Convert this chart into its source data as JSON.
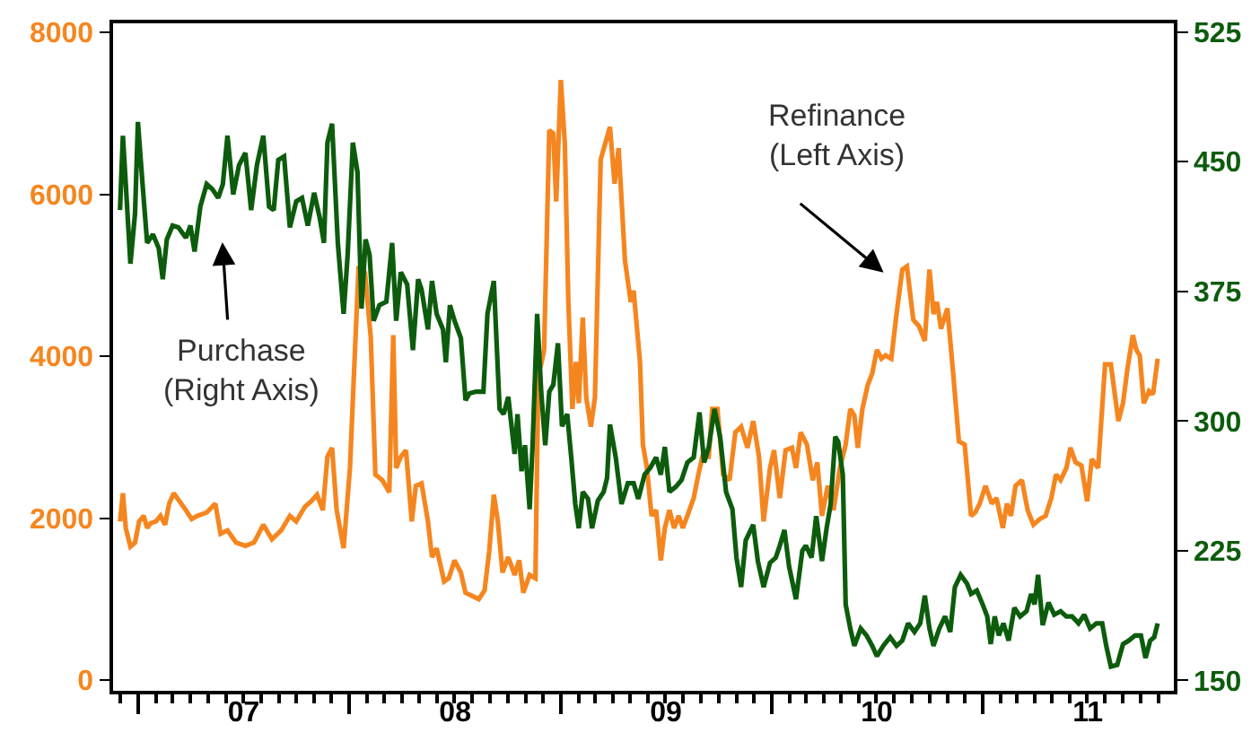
{
  "chart_data": {
    "type": "line",
    "xlim": [
      "2006-11-18",
      "2011-11-28"
    ],
    "xticks": [
      {
        "value": "2007-01-01",
        "label": null
      },
      {
        "value": "2008-01-01",
        "label": null
      },
      {
        "value": "2009-01-01",
        "label": null
      },
      {
        "value": "2010-01-01",
        "label": null
      },
      {
        "value": "2011-01-01",
        "label": null
      },
      {
        "value": "2007-07-02",
        "label": "07"
      },
      {
        "value": "2008-07-02",
        "label": "08"
      },
      {
        "value": "2009-07-02",
        "label": "09"
      },
      {
        "value": "2010-07-02",
        "label": "10"
      },
      {
        "value": "2011-07-02",
        "label": "11"
      }
    ],
    "ylim": [
      -130,
      8110
    ],
    "yticks": [
      0,
      2000,
      4000,
      6000,
      8000
    ],
    "y2lim": [
      144,
      530
    ],
    "y2ticks": [
      150,
      225,
      300,
      375,
      450,
      525
    ],
    "line_style": "solid",
    "annotations": [
      "Purchase\n(Right Axis)",
      "Refinance\n(Left Axis)"
    ],
    "series": [
      {
        "color": "#f5861f",
        "x": [
          "2006-11-30",
          "2006-12-05",
          "2006-12-10",
          "2006-12-18",
          "2006-12-26",
          "2007-01-02",
          "2007-01-10",
          "2007-01-16",
          "2007-01-22",
          "2007-01-31",
          "2007-02-08",
          "2007-02-16",
          "2007-02-23",
          "2007-03-03",
          "2007-03-13",
          "2007-03-24",
          "2007-04-03",
          "2007-04-13",
          "2007-04-29",
          "2007-05-14",
          "2007-05-23",
          "2007-06-04",
          "2007-06-19",
          "2007-07-05",
          "2007-07-20",
          "2007-08-05",
          "2007-08-20",
          "2007-09-05",
          "2007-09-20",
          "2007-10-01",
          "2007-10-16",
          "2007-10-27",
          "2007-11-06",
          "2007-11-16",
          "2007-11-24",
          "2007-12-02",
          "2007-12-10",
          "2007-12-22",
          "2008-01-02",
          "2008-01-09",
          "2008-01-17",
          "2008-01-28",
          "2008-02-07",
          "2008-02-15",
          "2008-02-27",
          "2008-03-10",
          "2008-03-17",
          "2008-03-22",
          "2008-03-30",
          "2008-04-08",
          "2008-04-18",
          "2008-04-25",
          "2008-05-05",
          "2008-05-16",
          "2008-05-23",
          "2008-05-31",
          "2008-06-13",
          "2008-06-21",
          "2008-07-01",
          "2008-07-12",
          "2008-07-20",
          "2008-08-01",
          "2008-08-12",
          "2008-08-22",
          "2008-08-30",
          "2008-09-07",
          "2008-09-14",
          "2008-09-22",
          "2008-10-02",
          "2008-10-13",
          "2008-10-21",
          "2008-10-28",
          "2008-11-08",
          "2008-11-18",
          "2008-11-23",
          "2008-11-28",
          "2008-12-03",
          "2008-12-12",
          "2008-12-19",
          "2008-12-24",
          "2009-01-01",
          "2009-01-08",
          "2009-01-14",
          "2009-01-21",
          "2009-01-27",
          "2009-02-01",
          "2009-02-08",
          "2009-02-14",
          "2009-02-22",
          "2009-03-01",
          "2009-03-11",
          "2009-03-27",
          "2009-04-04",
          "2009-04-11",
          "2009-04-22",
          "2009-05-02",
          "2009-05-07",
          "2009-05-18",
          "2009-05-23",
          "2009-05-30",
          "2009-06-07",
          "2009-06-15",
          "2009-06-23",
          "2009-06-30",
          "2009-07-08",
          "2009-07-16",
          "2009-07-24",
          "2009-07-31",
          "2009-08-08",
          "2009-08-19",
          "2009-08-27",
          "2009-09-03",
          "2009-09-14",
          "2009-09-20",
          "2009-09-29",
          "2009-10-09",
          "2009-10-20",
          "2009-10-30",
          "2009-11-09",
          "2009-11-20",
          "2009-11-30",
          "2009-12-10",
          "2009-12-18",
          "2009-12-29",
          "2010-01-05",
          "2010-01-15",
          "2010-01-25",
          "2010-02-05",
          "2010-02-12",
          "2010-02-20",
          "2010-03-03",
          "2010-03-13",
          "2010-03-21",
          "2010-03-29",
          "2010-04-08",
          "2010-04-18",
          "2010-04-29",
          "2010-05-09",
          "2010-05-17",
          "2010-05-24",
          "2010-05-30",
          "2010-06-07",
          "2010-06-16",
          "2010-06-24",
          "2010-07-02",
          "2010-07-10",
          "2010-07-17",
          "2010-07-27",
          "2010-08-05",
          "2010-08-15",
          "2010-08-23",
          "2010-09-03",
          "2010-09-13",
          "2010-09-23",
          "2010-10-01",
          "2010-10-08",
          "2010-10-14",
          "2010-10-21",
          "2010-11-01",
          "2010-11-11",
          "2010-11-21",
          "2010-12-01",
          "2010-12-12",
          "2010-12-19",
          "2010-12-27",
          "2011-01-06",
          "2011-01-17",
          "2011-01-25",
          "2011-02-05",
          "2011-02-12",
          "2011-02-19",
          "2011-02-27",
          "2011-03-10",
          "2011-03-20",
          "2011-03-30",
          "2011-04-10",
          "2011-04-20",
          "2011-04-30",
          "2011-05-08",
          "2011-05-16",
          "2011-05-26",
          "2011-06-02",
          "2011-06-11",
          "2011-06-21",
          "2011-07-01",
          "2011-07-09",
          "2011-07-20",
          "2011-08-01",
          "2011-08-11",
          "2011-08-24",
          "2011-09-01",
          "2011-09-09",
          "2011-09-18",
          "2011-09-24",
          "2011-09-30",
          "2011-10-07",
          "2011-10-16",
          "2011-10-23",
          "2011-10-31"
        ],
        "values": [
          1960,
          2310,
          1880,
          1650,
          1700,
          1960,
          2030,
          1880,
          1940,
          1960,
          2030,
          1920,
          2180,
          2310,
          2210,
          2100,
          1990,
          2030,
          2070,
          2180,
          1810,
          1850,
          1700,
          1660,
          1700,
          1920,
          1740,
          1850,
          2030,
          1960,
          2140,
          2210,
          2290,
          2100,
          2760,
          2870,
          2100,
          1630,
          2620,
          3790,
          5110,
          5030,
          4230,
          2540,
          2470,
          2320,
          4260,
          2620,
          2760,
          2840,
          1960,
          2400,
          2430,
          1960,
          1520,
          1630,
          1220,
          1260,
          1480,
          1330,
          1080,
          1040,
          1000,
          1110,
          1590,
          2290,
          1960,
          1330,
          1520,
          1300,
          1480,
          1080,
          1300,
          1260,
          3790,
          3900,
          4080,
          6790,
          6750,
          5910,
          7410,
          6610,
          4670,
          3350,
          3930,
          3420,
          4480,
          3490,
          3130,
          3490,
          6430,
          6830,
          6130,
          6570,
          5180,
          4670,
          4810,
          3930,
          2910,
          2620,
          2030,
          2100,
          1480,
          1880,
          2100,
          1880,
          2030,
          1880,
          2030,
          2250,
          2540,
          2760,
          2760,
          3350,
          3350,
          2540,
          2470,
          3060,
          3130,
          2870,
          3200,
          2760,
          1960,
          2620,
          2840,
          2250,
          2840,
          2870,
          2620,
          3060,
          2910,
          2470,
          2690,
          2030,
          2400,
          2100,
          2620,
          2910,
          3350,
          3270,
          2870,
          3350,
          3640,
          3790,
          4080,
          3970,
          4010,
          3970,
          4520,
          5070,
          5110,
          4450,
          4370,
          4190,
          5070,
          4520,
          4670,
          4340,
          4590,
          3790,
          2950,
          2910,
          2030,
          2070,
          2180,
          2400,
          2180,
          2250,
          1880,
          2180,
          2030,
          2400,
          2470,
          2100,
          1920,
          1990,
          2030,
          2250,
          2540,
          2470,
          2620,
          2870,
          2690,
          2650,
          2210,
          2730,
          2620,
          3900,
          3900,
          3200,
          3420,
          3860,
          4260,
          4080,
          4010,
          3420,
          3570,
          3530,
          3970
        ]
      },
      {
        "color": "#0d5c0d",
        "axis": "y2",
        "x": [
          "2006-11-30",
          "2006-12-05",
          "2006-12-10",
          "2006-12-18",
          "2006-12-26",
          "2006-12-31",
          "2007-01-08",
          "2007-01-16",
          "2007-01-26",
          "2007-02-05",
          "2007-02-12",
          "2007-02-19",
          "2007-03-01",
          "2007-03-11",
          "2007-03-24",
          "2007-04-01",
          "2007-04-08",
          "2007-04-18",
          "2007-04-29",
          "2007-05-09",
          "2007-05-19",
          "2007-05-27",
          "2007-06-04",
          "2007-06-14",
          "2007-06-24",
          "2007-07-05",
          "2007-07-15",
          "2007-07-25",
          "2007-08-05",
          "2007-08-15",
          "2007-08-23",
          "2007-08-31",
          "2007-09-10",
          "2007-09-20",
          "2007-10-01",
          "2007-10-11",
          "2007-10-21",
          "2007-11-01",
          "2007-11-11",
          "2007-11-18",
          "2007-11-24",
          "2007-12-02",
          "2007-12-12",
          "2007-12-22",
          "2007-12-29",
          "2008-01-07",
          "2008-01-15",
          "2008-01-22",
          "2008-01-29",
          "2008-02-05",
          "2008-02-12",
          "2008-02-22",
          "2008-03-05",
          "2008-03-15",
          "2008-03-22",
          "2008-03-30",
          "2008-04-10",
          "2008-04-20",
          "2008-04-29",
          "2008-05-05",
          "2008-05-16",
          "2008-05-23",
          "2008-05-31",
          "2008-06-11",
          "2008-06-16",
          "2008-06-23",
          "2008-07-01",
          "2008-07-12",
          "2008-07-20",
          "2008-07-27",
          "2008-08-07",
          "2008-08-20",
          "2008-08-27",
          "2008-09-07",
          "2008-09-17",
          "2008-09-24",
          "2008-10-02",
          "2008-10-13",
          "2008-10-18",
          "2008-10-25",
          "2008-10-31",
          "2008-11-08",
          "2008-11-13",
          "2008-11-21",
          "2008-11-28",
          "2008-12-05",
          "2008-12-12",
          "2008-12-19",
          "2008-12-27",
          "2009-01-03",
          "2009-01-12",
          "2009-01-19",
          "2009-01-26",
          "2009-02-01",
          "2009-02-08",
          "2009-02-17",
          "2009-02-24",
          "2009-03-06",
          "2009-03-16",
          "2009-03-22",
          "2009-03-27",
          "2009-04-06",
          "2009-04-16",
          "2009-04-27",
          "2009-05-07",
          "2009-05-15",
          "2009-05-26",
          "2009-06-05",
          "2009-06-15",
          "2009-06-23",
          "2009-06-30",
          "2009-07-08",
          "2009-07-19",
          "2009-07-29",
          "2009-08-08",
          "2009-08-19",
          "2009-08-29",
          "2009-09-06",
          "2009-09-14",
          "2009-09-24",
          "2009-10-04",
          "2009-10-14",
          "2009-10-25",
          "2009-11-01",
          "2009-11-09",
          "2009-11-17",
          "2009-11-30",
          "2009-12-08",
          "2009-12-18",
          "2009-12-29",
          "2010-01-08",
          "2010-01-15",
          "2010-01-23",
          "2010-01-31",
          "2010-02-12",
          "2010-02-23",
          "2010-03-01",
          "2010-03-11",
          "2010-03-19",
          "2010-03-29",
          "2010-04-06",
          "2010-04-13",
          "2010-04-21",
          "2010-04-26",
          "2010-05-04",
          "2010-05-09",
          "2010-05-17",
          "2010-05-24",
          "2010-06-04",
          "2010-06-14",
          "2010-06-24",
          "2010-07-02",
          "2010-07-13",
          "2010-07-25",
          "2010-08-05",
          "2010-08-15",
          "2010-08-25",
          "2010-09-05",
          "2010-09-15",
          "2010-09-23",
          "2010-10-01",
          "2010-10-08",
          "2010-10-18",
          "2010-10-28",
          "2010-11-06",
          "2010-11-14",
          "2010-11-24",
          "2010-12-05",
          "2010-12-12",
          "2010-12-22",
          "2011-01-01",
          "2011-01-09",
          "2011-01-15",
          "2011-01-22",
          "2011-01-29",
          "2011-02-06",
          "2011-02-15",
          "2011-02-25",
          "2011-03-07",
          "2011-03-18",
          "2011-03-26",
          "2011-04-01",
          "2011-04-07",
          "2011-04-15",
          "2011-04-25",
          "2011-05-05",
          "2011-05-16",
          "2011-05-26",
          "2011-06-05",
          "2011-06-16",
          "2011-06-26",
          "2011-07-06",
          "2011-07-17",
          "2011-07-27",
          "2011-08-03",
          "2011-08-11",
          "2011-08-22",
          "2011-09-01",
          "2011-09-11",
          "2011-09-22",
          "2011-10-02",
          "2011-10-10",
          "2011-10-18",
          "2011-10-25",
          "2011-10-31"
        ],
        "values": [
          422,
          465,
          437,
          391,
          420,
          473,
          437,
          403,
          408,
          400,
          382,
          405,
          413,
          412,
          406,
          413,
          398,
          424,
          437,
          434,
          429,
          437,
          465,
          431,
          448,
          455,
          422,
          448,
          465,
          424,
          422,
          451,
          453,
          412,
          427,
          429,
          413,
          432,
          417,
          403,
          461,
          472,
          403,
          362,
          396,
          461,
          444,
          365,
          405,
          396,
          358,
          367,
          369,
          403,
          358,
          386,
          379,
          341,
          382,
          376,
          353,
          381,
          362,
          353,
          334,
          367,
          358,
          348,
          312,
          316,
          317,
          317,
          362,
          381,
          307,
          304,
          314,
          281,
          304,
          271,
          286,
          249,
          285,
          362,
          317,
          286,
          317,
          321,
          345,
          297,
          304,
          279,
          252,
          238,
          259,
          255,
          238,
          254,
          259,
          267,
          298,
          279,
          252,
          264,
          264,
          255,
          269,
          273,
          279,
          269,
          285,
          259,
          262,
          266,
          276,
          279,
          305,
          276,
          285,
          307,
          290,
          259,
          249,
          221,
          204,
          231,
          240,
          219,
          204,
          218,
          221,
          228,
          237,
          216,
          197,
          225,
          228,
          221,
          245,
          219,
          238,
          252,
          291,
          288,
          269,
          194,
          180,
          170,
          180,
          176,
          170,
          164,
          170,
          175,
          170,
          173,
          183,
          178,
          183,
          199,
          180,
          170,
          180,
          187,
          178,
          204,
          211,
          206,
          200,
          202,
          194,
          187,
          171,
          187,
          176,
          183,
          173,
          192,
          187,
          190,
          200,
          194,
          211,
          182,
          195,
          188,
          190,
          187,
          187,
          183,
          188,
          180,
          183,
          183,
          170,
          158,
          159,
          171,
          173,
          176,
          176,
          163,
          173,
          175,
          183
        ]
      }
    ]
  }
}
